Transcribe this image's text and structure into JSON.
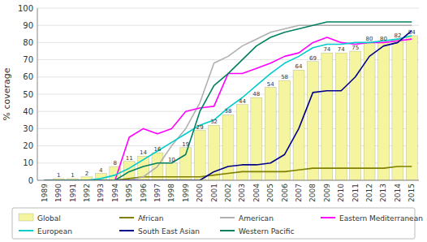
{
  "chart_data": {
    "type": "bar",
    "y_label": "% coverage",
    "categories": [
      "1989",
      "1990",
      "1991",
      "1992",
      "1993",
      "1994",
      "1995",
      "1996",
      "1997",
      "1998",
      "1999",
      "2000",
      "2001",
      "2002",
      "2003",
      "2004",
      "2005",
      "2006",
      "2007",
      "2008",
      "2009",
      "2010",
      "2011",
      "2012",
      "2013",
      "2014",
      "2015"
    ],
    "series": [
      {
        "name": "Global",
        "type": "bar",
        "color": "#f5f5a0",
        "data_labels": true,
        "values": [
          0,
          1,
          1,
          2,
          4,
          8,
          11,
          14,
          16,
          10,
          19,
          29,
          32,
          38,
          44,
          48,
          54,
          58,
          64,
          69,
          74,
          74,
          75,
          80,
          80,
          82,
          84
        ]
      },
      {
        "name": "African",
        "type": "line",
        "color": "#808000",
        "values": [
          0,
          0,
          0,
          0,
          0,
          0,
          1,
          2,
          2,
          2,
          2,
          2,
          3,
          4,
          5,
          5,
          5,
          5,
          6,
          7,
          7,
          7,
          7,
          7,
          7,
          8,
          8
        ]
      },
      {
        "name": "American",
        "type": "line",
        "color": "#b0b0b0",
        "values": [
          0,
          0,
          0,
          0,
          0,
          0,
          0,
          2,
          8,
          20,
          30,
          45,
          68,
          72,
          78,
          82,
          86,
          88,
          90,
          90,
          90,
          90,
          90,
          90,
          90,
          90,
          90
        ]
      },
      {
        "name": "Eastern Mediterranean",
        "type": "line",
        "color": "#ff00ff",
        "values": [
          0,
          0,
          0,
          0,
          0,
          0,
          25,
          30,
          27,
          30,
          40,
          42,
          43,
          62,
          62,
          65,
          68,
          72,
          74,
          80,
          83,
          80,
          79,
          80,
          80,
          81,
          82
        ]
      },
      {
        "name": "European",
        "type": "line",
        "color": "#00cccc",
        "values": [
          0,
          0,
          0,
          0,
          1,
          3,
          7,
          12,
          17,
          22,
          27,
          32,
          35,
          42,
          48,
          55,
          62,
          68,
          72,
          77,
          79,
          79,
          80,
          80,
          81,
          82,
          84
        ]
      },
      {
        "name": "South East Asian",
        "type": "line",
        "color": "#00008b",
        "values": [
          0,
          0,
          0,
          0,
          0,
          0,
          0,
          0,
          0,
          0,
          0,
          0,
          5,
          8,
          9,
          9,
          10,
          15,
          30,
          51,
          52,
          52,
          60,
          72,
          78,
          80,
          87
        ]
      },
      {
        "name": "Western Pacific",
        "type": "line",
        "color": "#008060",
        "values": [
          0,
          0,
          0,
          0,
          0,
          0,
          5,
          8,
          10,
          10,
          15,
          40,
          55,
          62,
          70,
          78,
          83,
          86,
          88,
          90,
          92,
          92,
          92,
          92,
          92,
          92,
          92
        ]
      }
    ],
    "ylim": [
      0,
      100
    ],
    "yticks": [
      0,
      10,
      20,
      30,
      40,
      50,
      60,
      70,
      80,
      90,
      100
    ],
    "grid": true,
    "legend": "bottom"
  }
}
